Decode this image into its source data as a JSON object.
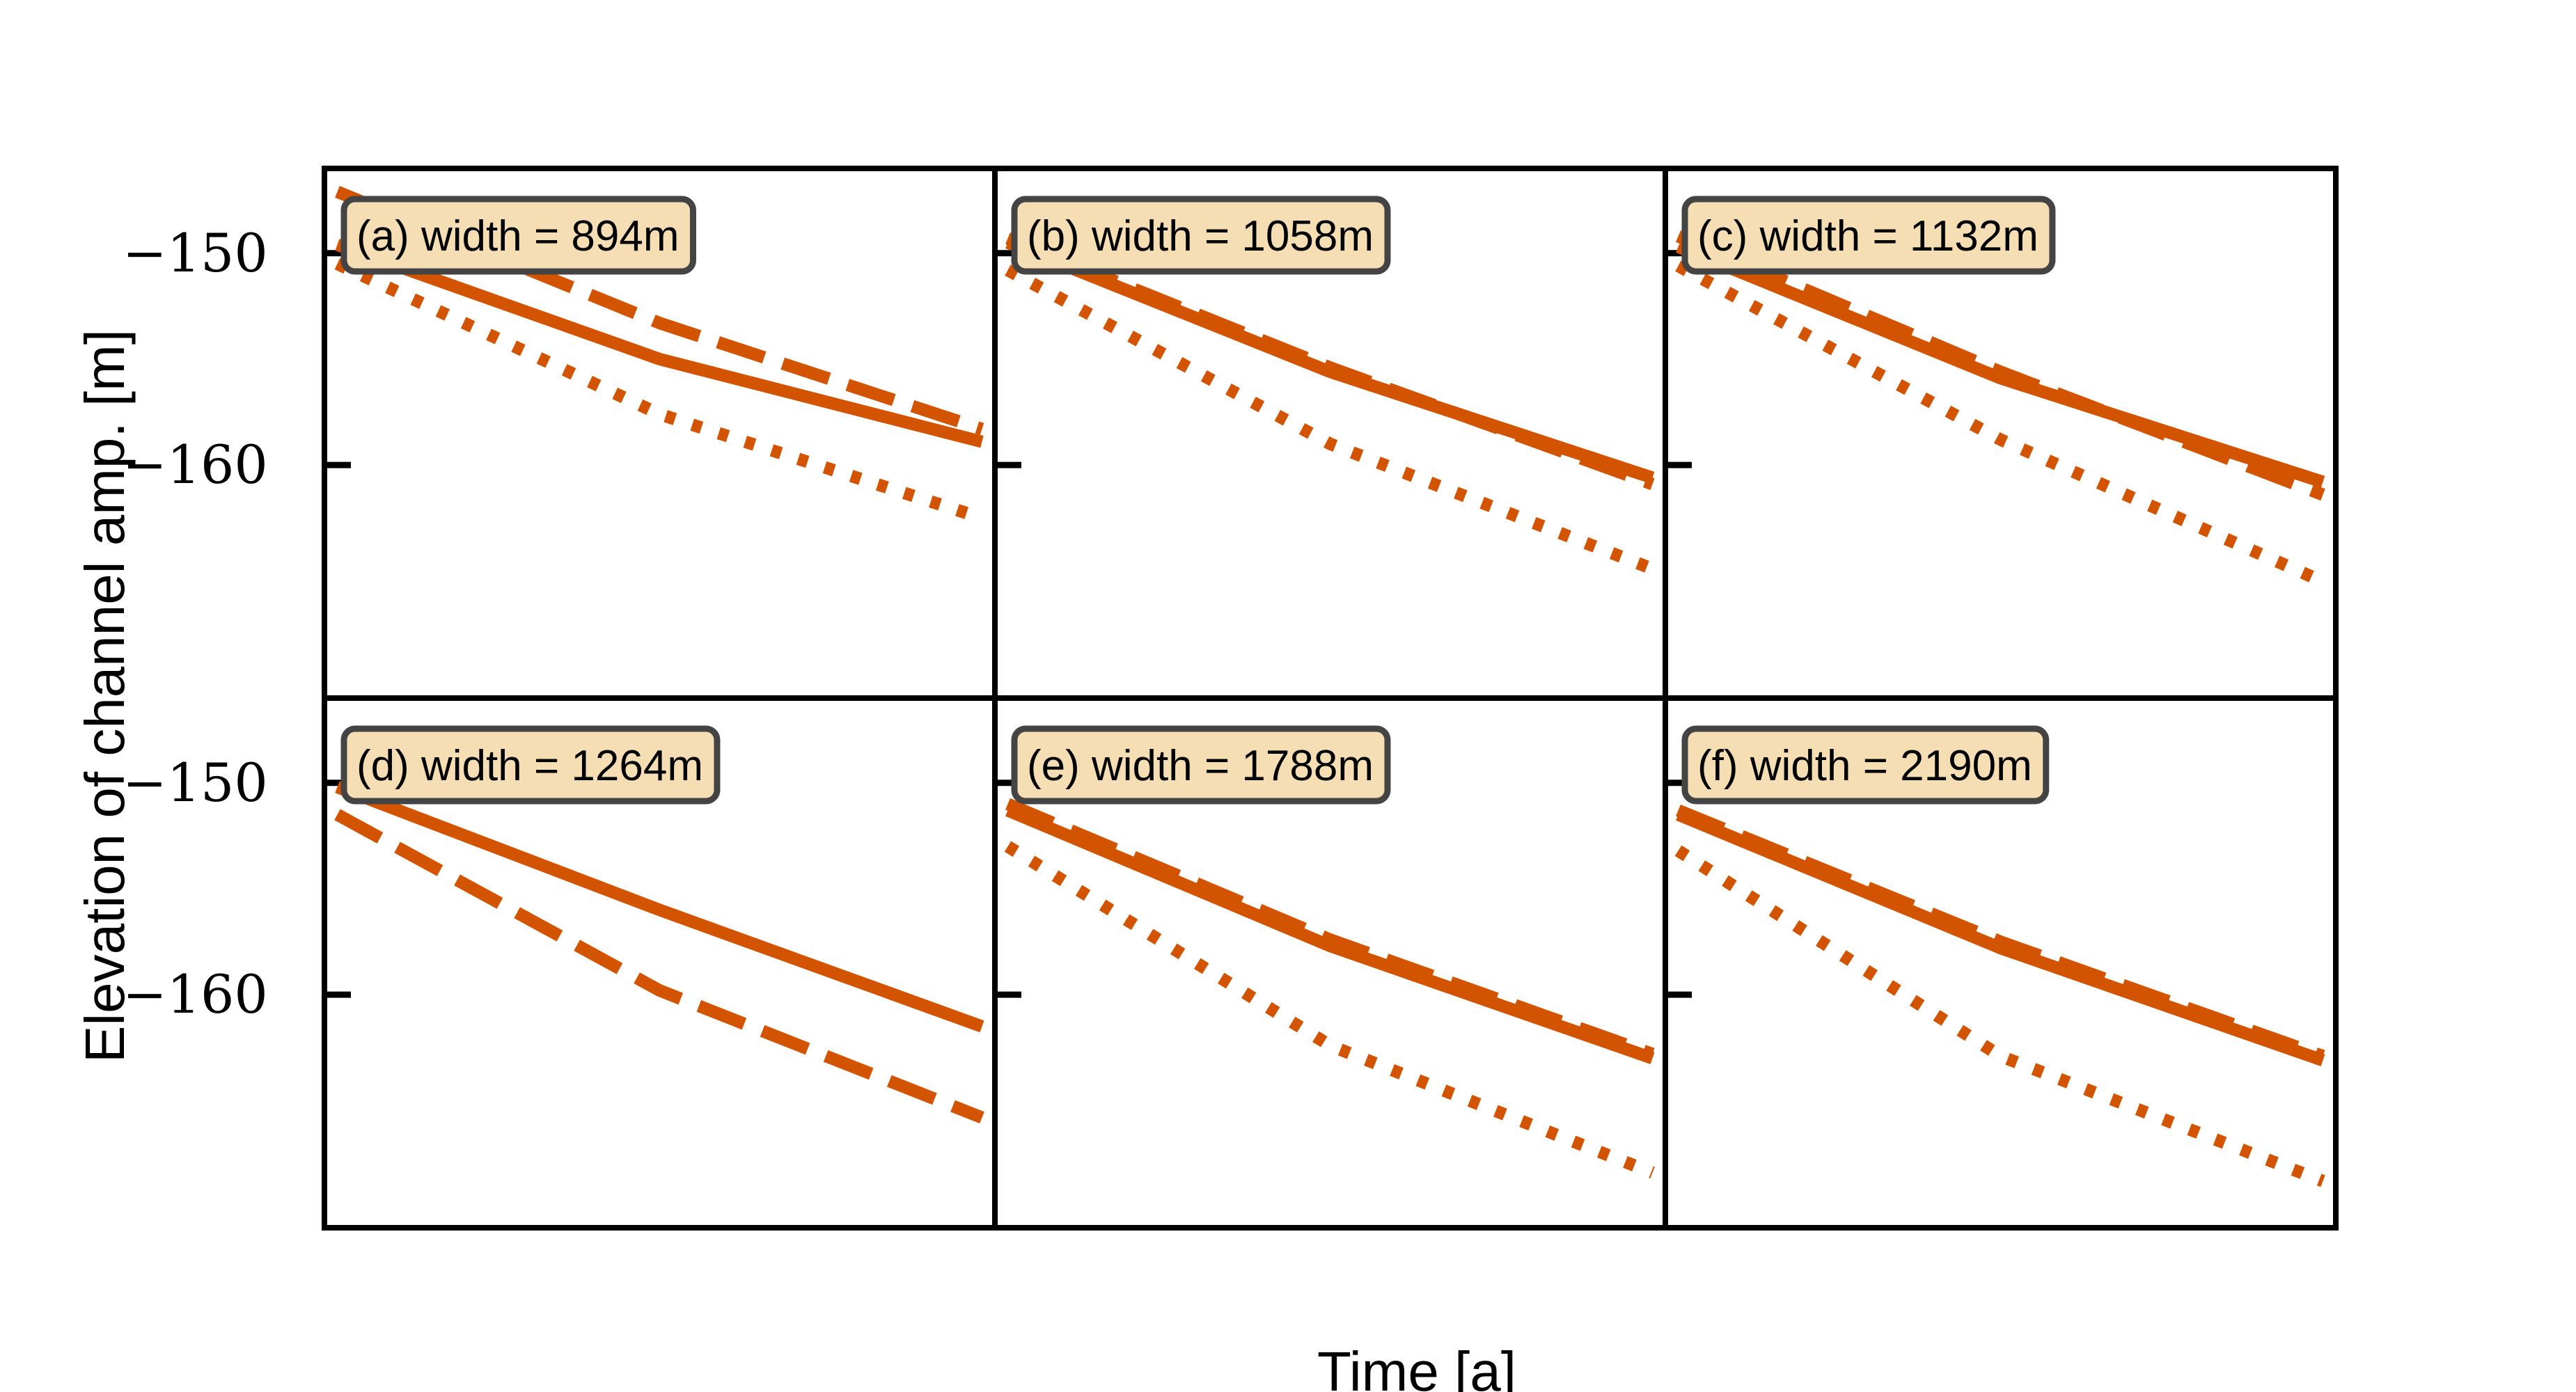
{
  "colors": {
    "line": "#d35400",
    "label_box_fill": "#f5deb3",
    "label_box_edge": "#444444",
    "axis": "#000000"
  },
  "chart_data": {
    "type": "line",
    "layout": "2x3 grid, shared axes",
    "xlabel": "Time [a]",
    "ylabel": "Elevation of channel amp. [m]",
    "ylim": [
      -171,
      -146
    ],
    "yticks": [
      -150,
      -160
    ],
    "ytick_labels": [
      "−150",
      "−160"
    ],
    "xlim": [
      -0.02,
      1.02
    ],
    "xticks_shown": false,
    "line_styles": [
      "solid",
      "dashed",
      "dotted"
    ],
    "panels": [
      {
        "label": "(a) width = 894m",
        "series": [
          {
            "style": "solid",
            "x": [
              0,
              0.5,
              1
            ],
            "y": [
              -149.6,
              -155.0,
              -158.9
            ]
          },
          {
            "style": "dashed",
            "x": [
              0,
              0.5,
              1
            ],
            "y": [
              -147.1,
              -153.3,
              -158.3
            ]
          },
          {
            "style": "dotted",
            "x": [
              0,
              0.5,
              1
            ],
            "y": [
              -150.5,
              -157.6,
              -162.5
            ]
          }
        ]
      },
      {
        "label": "(b) width = 1058m",
        "series": [
          {
            "style": "solid",
            "x": [
              0,
              0.5,
              1
            ],
            "y": [
              -149.5,
              -155.6,
              -160.6
            ]
          },
          {
            "style": "dashed",
            "x": [
              0,
              0.5,
              1
            ],
            "y": [
              -149.3,
              -155.4,
              -160.9
            ]
          },
          {
            "style": "dotted",
            "x": [
              0,
              0.5,
              1
            ],
            "y": [
              -150.8,
              -159.0,
              -164.9
            ]
          }
        ]
      },
      {
        "label": "(c) width = 1132m",
        "series": [
          {
            "style": "solid",
            "x": [
              0,
              0.5,
              1
            ],
            "y": [
              -149.7,
              -155.9,
              -160.8
            ]
          },
          {
            "style": "dashed",
            "x": [
              0,
              0.5,
              1
            ],
            "y": [
              -149.2,
              -155.6,
              -161.4
            ]
          },
          {
            "style": "dotted",
            "x": [
              0,
              0.5,
              1
            ],
            "y": [
              -150.6,
              -158.8,
              -165.5
            ]
          }
        ]
      },
      {
        "label": "(d) width = 1264m",
        "series": [
          {
            "style": "solid",
            "x": [
              0,
              0.5,
              1
            ],
            "y": [
              -150.2,
              -156.0,
              -161.5
            ]
          },
          {
            "style": "dashed",
            "x": [
              0,
              0.5,
              1
            ],
            "y": [
              -151.5,
              -159.8,
              -165.8
            ]
          }
        ]
      },
      {
        "label": "(e) width = 1788m",
        "series": [
          {
            "style": "solid",
            "x": [
              0,
              0.5,
              1
            ],
            "y": [
              -151.3,
              -157.7,
              -163.0
            ]
          },
          {
            "style": "dashed",
            "x": [
              0,
              0.5,
              1
            ],
            "y": [
              -151.0,
              -157.4,
              -162.8
            ]
          },
          {
            "style": "dotted",
            "x": [
              0,
              0.5,
              1
            ],
            "y": [
              -153.0,
              -162.4,
              -168.4
            ]
          }
        ]
      },
      {
        "label": "(f) width = 2190m",
        "series": [
          {
            "style": "solid",
            "x": [
              0,
              0.5,
              1
            ],
            "y": [
              -151.5,
              -157.8,
              -163.1
            ]
          },
          {
            "style": "dashed",
            "x": [
              0,
              0.5,
              1
            ],
            "y": [
              -151.3,
              -157.5,
              -162.9
            ]
          },
          {
            "style": "dotted",
            "x": [
              0,
              0.5,
              1
            ],
            "y": [
              -153.2,
              -162.9,
              -168.8
            ]
          }
        ]
      }
    ]
  }
}
